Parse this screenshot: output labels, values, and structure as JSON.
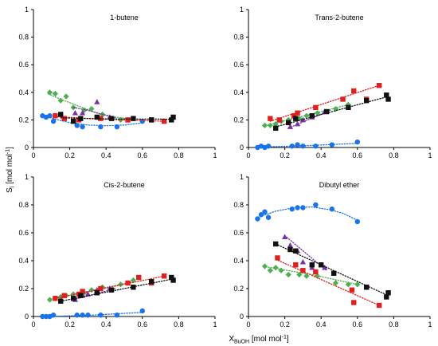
{
  "figure": {
    "ylabel_main": "S",
    "ylabel_sub": "i",
    "ylabel_unit": " [mol mol",
    "ylabel_exp": "-1",
    "ylabel_close": "]",
    "xlabel_main": "X",
    "xlabel_sub": "BuOH",
    "xlabel_unit": " [mol mol",
    "xlabel_exp": "-1",
    "xlabel_close": "]"
  },
  "chart_data": [
    {
      "type": "scatter",
      "title": "1-butene",
      "xlim": [
        0,
        1
      ],
      "ylim": [
        0,
        1
      ],
      "xticks": [
        "0",
        "0.2",
        "0.4",
        "0.6",
        "0.8",
        "1"
      ],
      "yticks": [
        "0",
        "0.2",
        "0.4",
        "0.6",
        "0.8",
        "1"
      ],
      "series": [
        {
          "color": "#1a73e8",
          "marker": "circle",
          "x": [
            0.05,
            0.07,
            0.09,
            0.11,
            0.24,
            0.27,
            0.37,
            0.46,
            0.6
          ],
          "y": [
            0.23,
            0.22,
            0.23,
            0.19,
            0.16,
            0.15,
            0.15,
            0.15,
            0.19
          ],
          "trend": [
            [
              0.05,
              0.235
            ],
            [
              0.12,
              0.205
            ],
            [
              0.2,
              0.18
            ],
            [
              0.3,
              0.163
            ],
            [
              0.4,
              0.158
            ],
            [
              0.5,
              0.163
            ],
            [
              0.6,
              0.178
            ]
          ]
        },
        {
          "color": "#4caf50",
          "marker": "diamond",
          "x": [
            0.09,
            0.12,
            0.15,
            0.18,
            0.22,
            0.28,
            0.32,
            0.38,
            0.48,
            0.55
          ],
          "y": [
            0.4,
            0.39,
            0.34,
            0.37,
            0.29,
            0.27,
            0.28,
            0.24,
            0.2,
            0.21
          ],
          "trend": [
            [
              0.08,
              0.39
            ],
            [
              0.15,
              0.35
            ],
            [
              0.25,
              0.3
            ],
            [
              0.35,
              0.25
            ],
            [
              0.45,
              0.22
            ],
            [
              0.55,
              0.205
            ]
          ]
        },
        {
          "color": "#7b2fa8",
          "marker": "triangle",
          "x": [
            0.23,
            0.27,
            0.35,
            0.42
          ],
          "y": [
            0.25,
            0.25,
            0.33,
            0.22
          ],
          "trend": [
            [
              0.22,
              0.29
            ],
            [
              0.3,
              0.27
            ],
            [
              0.38,
              0.24
            ],
            [
              0.45,
              0.215
            ]
          ]
        },
        {
          "color": "#e02020",
          "marker": "square",
          "x": [
            0.12,
            0.17,
            0.25,
            0.37,
            0.52,
            0.65,
            0.72
          ],
          "y": [
            0.23,
            0.21,
            0.2,
            0.21,
            0.2,
            0.2,
            0.19
          ],
          "trend": [
            [
              0.12,
              0.225
            ],
            [
              0.3,
              0.21
            ],
            [
              0.5,
              0.2
            ],
            [
              0.72,
              0.19
            ]
          ]
        },
        {
          "color": "#111111",
          "marker": "square",
          "x": [
            0.15,
            0.22,
            0.26,
            0.35,
            0.43,
            0.55,
            0.65,
            0.76,
            0.77
          ],
          "y": [
            0.24,
            0.19,
            0.21,
            0.22,
            0.21,
            0.21,
            0.2,
            0.2,
            0.22
          ],
          "trend": [
            [
              0.15,
              0.215
            ],
            [
              0.4,
              0.207
            ],
            [
              0.77,
              0.205
            ]
          ]
        }
      ]
    },
    {
      "type": "scatter",
      "title": "Trans-2-butene",
      "xlim": [
        0,
        1
      ],
      "ylim": [
        0,
        1
      ],
      "xticks": [
        "0",
        "0.2",
        "0.4",
        "0.6",
        "0.8",
        "1"
      ],
      "yticks": [
        "0",
        "0.2",
        "0.4",
        "0.6",
        "0.8",
        "1"
      ],
      "series": [
        {
          "color": "#1a73e8",
          "marker": "circle",
          "x": [
            0.05,
            0.07,
            0.09,
            0.11,
            0.24,
            0.27,
            0.3,
            0.37,
            0.46,
            0.6
          ],
          "y": [
            0.0,
            0.01,
            0.0,
            0.01,
            0.01,
            0.02,
            0.01,
            0.01,
            0.02,
            0.04
          ],
          "trend": [
            [
              0.05,
              0.003
            ],
            [
              0.3,
              0.012
            ],
            [
              0.6,
              0.03
            ]
          ]
        },
        {
          "color": "#4caf50",
          "marker": "diamond",
          "x": [
            0.09,
            0.12,
            0.15,
            0.18,
            0.22,
            0.28,
            0.32,
            0.38,
            0.48,
            0.55
          ],
          "y": [
            0.16,
            0.16,
            0.17,
            0.19,
            0.2,
            0.21,
            0.23,
            0.25,
            0.28,
            0.31
          ],
          "trend": [
            [
              0.08,
              0.155
            ],
            [
              0.55,
              0.31
            ]
          ]
        },
        {
          "color": "#7b2fa8",
          "marker": "triangle",
          "x": [
            0.23,
            0.27,
            0.3,
            0.35,
            0.42
          ],
          "y": [
            0.15,
            0.17,
            0.2,
            0.22,
            0.26
          ],
          "trend": [
            [
              0.22,
              0.14
            ],
            [
              0.45,
              0.27
            ]
          ]
        },
        {
          "color": "#e02020",
          "marker": "square",
          "x": [
            0.12,
            0.17,
            0.25,
            0.27,
            0.37,
            0.52,
            0.58,
            0.65,
            0.72
          ],
          "y": [
            0.21,
            0.2,
            0.23,
            0.25,
            0.29,
            0.35,
            0.41,
            0.35,
            0.45
          ],
          "trend": [
            [
              0.12,
              0.19
            ],
            [
              0.72,
              0.45
            ]
          ]
        },
        {
          "color": "#111111",
          "marker": "square",
          "x": [
            0.15,
            0.22,
            0.26,
            0.35,
            0.43,
            0.55,
            0.65,
            0.76,
            0.77
          ],
          "y": [
            0.14,
            0.18,
            0.21,
            0.23,
            0.26,
            0.29,
            0.34,
            0.38,
            0.35
          ],
          "trend": [
            [
              0.15,
              0.15
            ],
            [
              0.77,
              0.37
            ]
          ]
        }
      ]
    },
    {
      "type": "scatter",
      "title": "Cis-2-butene",
      "xlim": [
        0,
        1
      ],
      "ylim": [
        0,
        1
      ],
      "xticks": [
        "0",
        "0.2",
        "0.4",
        "0.6",
        "0.8",
        "1"
      ],
      "yticks": [
        "0",
        "0.2",
        "0.4",
        "0.6",
        "0.8",
        "1"
      ],
      "series": [
        {
          "color": "#1a73e8",
          "marker": "circle",
          "x": [
            0.05,
            0.07,
            0.09,
            0.11,
            0.24,
            0.27,
            0.3,
            0.37,
            0.46,
            0.6
          ],
          "y": [
            0.0,
            0.0,
            0.0,
            0.01,
            0.01,
            0.01,
            0.01,
            0.01,
            0.01,
            0.04
          ],
          "trend": [
            [
              0.05,
              0.0
            ],
            [
              0.3,
              0.008
            ],
            [
              0.6,
              0.03
            ]
          ]
        },
        {
          "color": "#4caf50",
          "marker": "diamond",
          "x": [
            0.09,
            0.12,
            0.15,
            0.18,
            0.22,
            0.28,
            0.32,
            0.38,
            0.48,
            0.55
          ],
          "y": [
            0.12,
            0.13,
            0.14,
            0.15,
            0.16,
            0.17,
            0.19,
            0.21,
            0.23,
            0.26
          ],
          "trend": [
            [
              0.08,
              0.12
            ],
            [
              0.55,
              0.25
            ]
          ]
        },
        {
          "color": "#7b2fa8",
          "marker": "triangle",
          "x": [
            0.23,
            0.27,
            0.3,
            0.35,
            0.42
          ],
          "y": [
            0.12,
            0.15,
            0.16,
            0.19,
            0.2
          ],
          "trend": [
            [
              0.22,
              0.12
            ],
            [
              0.45,
              0.2
            ]
          ]
        },
        {
          "color": "#e02020",
          "marker": "square",
          "x": [
            0.12,
            0.17,
            0.25,
            0.27,
            0.37,
            0.52,
            0.58,
            0.65,
            0.72
          ],
          "y": [
            0.13,
            0.15,
            0.16,
            0.18,
            0.2,
            0.24,
            0.28,
            0.24,
            0.29
          ],
          "trend": [
            [
              0.12,
              0.13
            ],
            [
              0.72,
              0.29
            ]
          ]
        },
        {
          "color": "#111111",
          "marker": "square",
          "x": [
            0.15,
            0.22,
            0.26,
            0.35,
            0.43,
            0.55,
            0.65,
            0.76,
            0.77
          ],
          "y": [
            0.11,
            0.13,
            0.15,
            0.17,
            0.19,
            0.21,
            0.25,
            0.28,
            0.26
          ],
          "trend": [
            [
              0.15,
              0.11
            ],
            [
              0.77,
              0.27
            ]
          ]
        }
      ]
    },
    {
      "type": "scatter",
      "title": "Dibutyl ether",
      "xlim": [
        0,
        1
      ],
      "ylim": [
        0,
        1
      ],
      "xticks": [
        "0",
        "0.2",
        "0.4",
        "0.6",
        "0.8",
        "1"
      ],
      "yticks": [
        "0",
        "0.2",
        "0.4",
        "0.6",
        "0.8",
        "1"
      ],
      "series": [
        {
          "color": "#1a73e8",
          "marker": "circle",
          "x": [
            0.05,
            0.07,
            0.09,
            0.11,
            0.24,
            0.27,
            0.3,
            0.37,
            0.46,
            0.6
          ],
          "y": [
            0.7,
            0.73,
            0.75,
            0.71,
            0.77,
            0.78,
            0.78,
            0.8,
            0.77,
            0.68
          ],
          "trend": [
            [
              0.05,
              0.71
            ],
            [
              0.15,
              0.755
            ],
            [
              0.25,
              0.78
            ],
            [
              0.35,
              0.785
            ],
            [
              0.45,
              0.765
            ],
            [
              0.52,
              0.74
            ],
            [
              0.6,
              0.69
            ]
          ]
        },
        {
          "color": "#4caf50",
          "marker": "diamond",
          "x": [
            0.09,
            0.12,
            0.15,
            0.18,
            0.22,
            0.28,
            0.32,
            0.38,
            0.48,
            0.55,
            0.6
          ],
          "y": [
            0.36,
            0.33,
            0.35,
            0.33,
            0.3,
            0.3,
            0.29,
            0.29,
            0.24,
            0.23,
            0.23
          ],
          "trend": [
            [
              0.08,
              0.36
            ],
            [
              0.35,
              0.3
            ],
            [
              0.6,
              0.23
            ]
          ]
        },
        {
          "color": "#7b2fa8",
          "marker": "triangle",
          "x": [
            0.2,
            0.23,
            0.27,
            0.3,
            0.35,
            0.42
          ],
          "y": [
            0.57,
            0.51,
            0.47,
            0.39,
            0.35,
            0.35
          ],
          "trend": [
            [
              0.2,
              0.58
            ],
            [
              0.43,
              0.33
            ]
          ]
        },
        {
          "color": "#e02020",
          "marker": "square",
          "x": [
            0.16,
            0.26,
            0.3,
            0.37,
            0.57,
            0.58,
            0.65,
            0.72
          ],
          "y": [
            0.42,
            0.37,
            0.33,
            0.32,
            0.19,
            0.1,
            0.21,
            0.08
          ],
          "trend": [
            [
              0.15,
              0.41
            ],
            [
              0.72,
              0.08
            ]
          ]
        },
        {
          "color": "#111111",
          "marker": "square",
          "x": [
            0.15,
            0.23,
            0.26,
            0.35,
            0.4,
            0.47,
            0.65,
            0.76,
            0.77
          ],
          "y": [
            0.52,
            0.48,
            0.47,
            0.37,
            0.37,
            0.31,
            0.21,
            0.14,
            0.17
          ],
          "trend": [
            [
              0.15,
              0.52
            ],
            [
              0.77,
              0.15
            ]
          ]
        }
      ]
    }
  ]
}
